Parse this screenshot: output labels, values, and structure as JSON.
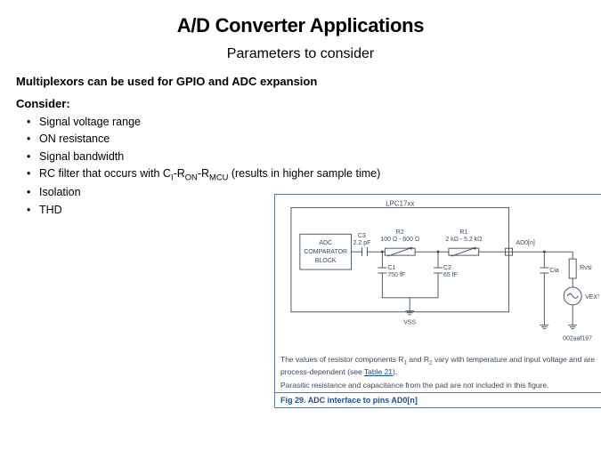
{
  "colors": {
    "fig_border": "#5b7a99",
    "fig_text": "#3a4a5a",
    "fig_link": "#1a4f8f",
    "stroke": "#3a4a5a"
  },
  "title": "A/D Converter Applications",
  "subtitle": "Parameters to consider",
  "heading1": "Multiplexors can be used for GPIO and ADC expansion",
  "heading2": "Consider:",
  "params": [
    "Signal voltage range",
    "ON resistance",
    "Signal bandwidth",
    "RC filter that occurs with C_I-R_ON-R_MCU (results in higher sample time)",
    "Isolation",
    "THD"
  ],
  "figure": {
    "chip_title": "LPC17xx",
    "adc_block": [
      "ADC",
      "COMPARATOR",
      "BLOCK"
    ],
    "labels": {
      "c3": "C3",
      "c3v": "2.2 pF",
      "r2": "R2",
      "r2v": "100 Ω - 600 Ω",
      "r1": "R1",
      "r1v": "2 kΩ - 5.2 kΩ",
      "c1": "C1",
      "c1v": "750 fF",
      "c2": "C2",
      "c2v": "65 fF",
      "vss": "VSS",
      "ad0": "AD0[n]",
      "cia": "Cia",
      "rvsi": "Rvsi",
      "vext": "VEXT",
      "figid": "002aaf197"
    },
    "note1_pre": "The values of resistor components R",
    "note1_mid": " and R",
    "note1_post": " vary with temperature and input voltage and are process-dependent (see ",
    "note1_link": "Table 21",
    "note1_end": ").",
    "note2": "Parasitic resistance and capacitance from the pad are not included in this figure.",
    "caption_pre": "Fig 29.  ",
    "caption": "ADC interface to pins AD0[n]"
  }
}
